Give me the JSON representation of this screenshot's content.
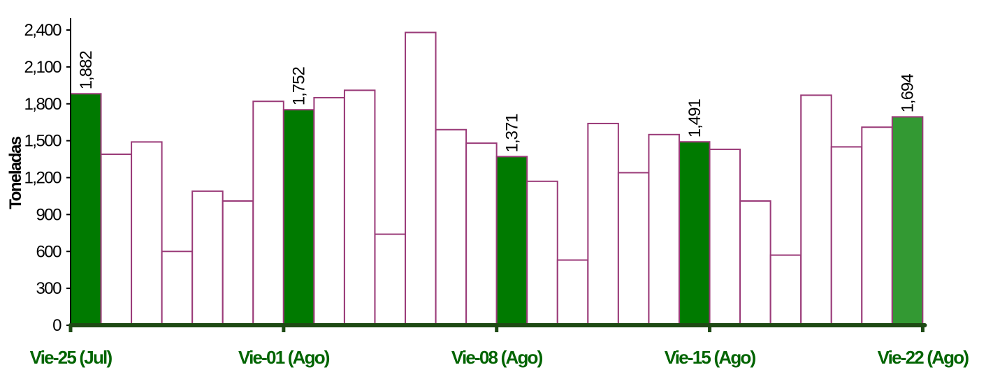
{
  "chart_data": {
    "type": "bar",
    "title": "",
    "xlabel": "",
    "ylabel": "Toneladas",
    "ylim": [
      0,
      2400
    ],
    "yticks": [
      0,
      300,
      600,
      900,
      1200,
      1500,
      1800,
      2100,
      2400
    ],
    "ytick_labels": [
      "0",
      "300",
      "600",
      "900",
      "1,200",
      "1,500",
      "1,800",
      "2,100",
      "2,400"
    ],
    "xtick_labels": [
      {
        "index": 0,
        "label": "Vie-25 (Jul)"
      },
      {
        "index": 7,
        "label": "Vie-01 (Ago)"
      },
      {
        "index": 14,
        "label": "Vie-08 (Ago)"
      },
      {
        "index": 21,
        "label": "Vie-15 (Ago)"
      },
      {
        "index": 28,
        "label": "Vie-22 (Ago)"
      }
    ],
    "values": [
      1882,
      1390,
      1490,
      600,
      1090,
      1010,
      1820,
      1752,
      1850,
      1910,
      740,
      2380,
      1590,
      1480,
      1371,
      1170,
      530,
      1640,
      1240,
      1550,
      1491,
      1430,
      1010,
      570,
      1870,
      1450,
      1610,
      1694
    ],
    "highlighted_indices": [
      0,
      7,
      14,
      20,
      27
    ],
    "data_labels": [
      {
        "index": 0,
        "text": "1,882"
      },
      {
        "index": 7,
        "text": "1,752"
      },
      {
        "index": 14,
        "text": "1,371"
      },
      {
        "index": 20,
        "text": "1,491"
      },
      {
        "index": 27,
        "text": "1,694"
      }
    ],
    "grid": false,
    "legend": "none"
  },
  "colors": {
    "bar_outline": "#9a3a78",
    "bar_fill": "#ffffff",
    "highlight_fill": "#007a00",
    "last_highlight_fill": "#339933",
    "x_axis": "#1e4a14",
    "x_label": "#006400",
    "y_axis": "#000000"
  }
}
